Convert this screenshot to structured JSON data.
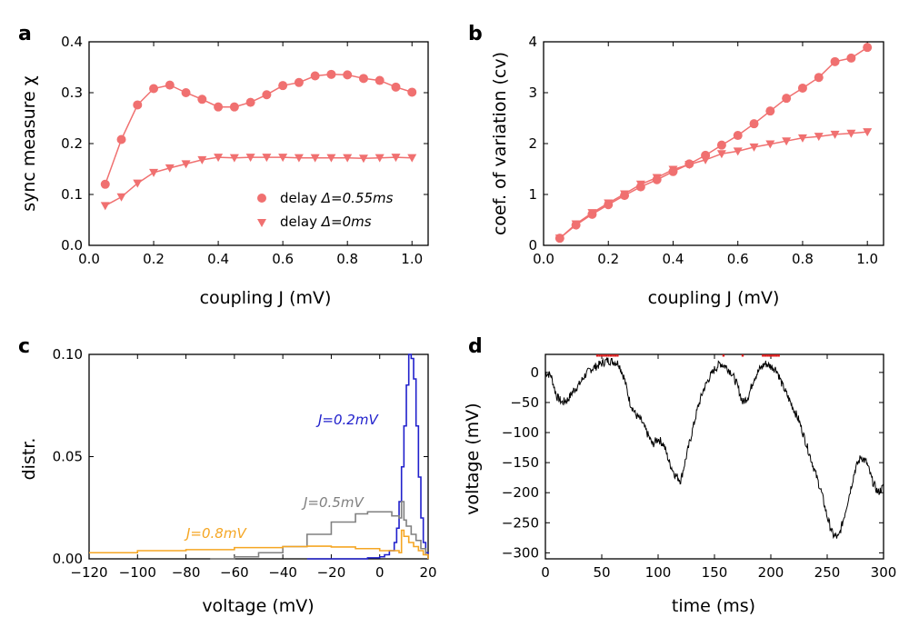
{
  "chart_data": [
    {
      "panel": "a",
      "type": "line",
      "xlabel": "coupling J (mV)",
      "ylabel": "sync measure χ",
      "xlim": [
        0,
        1.05
      ],
      "ylim": [
        0,
        0.4
      ],
      "xticks": [
        0.0,
        0.2,
        0.4,
        0.6,
        0.8,
        1.0
      ],
      "yticks": [
        0.0,
        0.1,
        0.2,
        0.3,
        0.4
      ],
      "grid": false,
      "legend_position": "lower-right",
      "series": [
        {
          "name": "delay Δ=0.55ms",
          "marker": "circle",
          "color": "#f07070",
          "x": [
            0.05,
            0.1,
            0.15,
            0.2,
            0.25,
            0.3,
            0.35,
            0.4,
            0.45,
            0.5,
            0.55,
            0.6,
            0.65,
            0.7,
            0.75,
            0.8,
            0.85,
            0.9,
            0.95,
            1.0
          ],
          "y": [
            0.12,
            0.208,
            0.276,
            0.308,
            0.315,
            0.3,
            0.287,
            0.272,
            0.272,
            0.281,
            0.296,
            0.314,
            0.32,
            0.333,
            0.336,
            0.335,
            0.328,
            0.324,
            0.311,
            0.301
          ]
        },
        {
          "name": "delay Δ=0ms",
          "marker": "triangle-down",
          "color": "#f07070",
          "x": [
            0.05,
            0.1,
            0.15,
            0.2,
            0.25,
            0.3,
            0.35,
            0.4,
            0.45,
            0.5,
            0.55,
            0.6,
            0.65,
            0.7,
            0.75,
            0.8,
            0.85,
            0.9,
            0.95,
            1.0
          ],
          "y": [
            0.078,
            0.095,
            0.122,
            0.143,
            0.152,
            0.16,
            0.168,
            0.173,
            0.172,
            0.173,
            0.173,
            0.173,
            0.172,
            0.172,
            0.172,
            0.172,
            0.171,
            0.172,
            0.173,
            0.172
          ]
        }
      ]
    },
    {
      "panel": "b",
      "type": "line",
      "xlabel": "coupling J (mV)",
      "ylabel": "coef. of variation (cv)",
      "xlim": [
        0,
        1.05
      ],
      "ylim": [
        0,
        4
      ],
      "xticks": [
        0.0,
        0.2,
        0.4,
        0.6,
        0.8,
        1.0
      ],
      "yticks": [
        0,
        1,
        2,
        3,
        4
      ],
      "grid": false,
      "series": [
        {
          "name": "",
          "marker": "circle",
          "color": "#f07070",
          "x": [
            0.05,
            0.1,
            0.15,
            0.2,
            0.25,
            0.3,
            0.35,
            0.4,
            0.45,
            0.5,
            0.55,
            0.6,
            0.65,
            0.7,
            0.75,
            0.8,
            0.85,
            0.9,
            0.95,
            1.0
          ],
          "y": [
            0.14,
            0.4,
            0.61,
            0.8,
            0.98,
            1.15,
            1.29,
            1.45,
            1.6,
            1.77,
            1.97,
            2.16,
            2.39,
            2.64,
            2.89,
            3.09,
            3.3,
            3.61,
            3.68,
            3.89
          ]
        },
        {
          "name": "",
          "marker": "triangle-down",
          "color": "#f07070",
          "x": [
            0.05,
            0.1,
            0.15,
            0.2,
            0.25,
            0.3,
            0.35,
            0.4,
            0.45,
            0.5,
            0.55,
            0.6,
            0.65,
            0.7,
            0.75,
            0.8,
            0.85,
            0.9,
            0.95,
            1.0
          ],
          "y": [
            0.14,
            0.42,
            0.64,
            0.83,
            1.01,
            1.2,
            1.33,
            1.49,
            1.59,
            1.68,
            1.8,
            1.85,
            1.93,
            1.99,
            2.05,
            2.11,
            2.14,
            2.18,
            2.2,
            2.23
          ]
        }
      ]
    },
    {
      "panel": "c",
      "type": "line",
      "xlabel": "voltage (mV)",
      "ylabel": "distr.",
      "xlim": [
        -120,
        20
      ],
      "ylim": [
        0,
        0.1
      ],
      "xticks": [
        -120,
        -100,
        -80,
        -60,
        -40,
        -20,
        0,
        20
      ],
      "yticks": [
        0.0,
        0.05,
        0.1
      ],
      "ytick_labels": [
        "0.00",
        "0.05",
        "0.10"
      ],
      "xtick_labels": [
        "−120",
        "−100",
        "−80",
        "−60",
        "−40",
        "−20",
        "0",
        "20"
      ],
      "grid": false,
      "series": [
        {
          "name": "J=0.2mV",
          "color": "#2020cc",
          "x": [
            -30,
            -20,
            -10,
            -5,
            0,
            2,
            4,
            6,
            7,
            8,
            9,
            10,
            11,
            12,
            13,
            14,
            15,
            16,
            17,
            18,
            19,
            20
          ],
          "y": [
            0.0,
            0.0,
            0.0,
            0.0005,
            0.001,
            0.002,
            0.004,
            0.008,
            0.015,
            0.028,
            0.045,
            0.065,
            0.085,
            0.1,
            0.098,
            0.088,
            0.065,
            0.04,
            0.02,
            0.008,
            0.003,
            0.0
          ]
        },
        {
          "name": "J=0.5mV",
          "color": "#808080",
          "x": [
            -70,
            -60,
            -50,
            -40,
            -30,
            -20,
            -10,
            -5,
            0,
            5,
            8,
            9,
            10,
            11,
            13,
            15,
            17,
            19,
            20
          ],
          "y": [
            0.0,
            0.001,
            0.003,
            0.006,
            0.012,
            0.018,
            0.022,
            0.023,
            0.023,
            0.021,
            0.02,
            0.028,
            0.019,
            0.016,
            0.012,
            0.009,
            0.005,
            0.002,
            0.0
          ]
        },
        {
          "name": "J=0.8mV",
          "color": "#f5a623",
          "x": [
            -120,
            -100,
            -80,
            -60,
            -40,
            -30,
            -20,
            -10,
            0,
            8,
            9,
            10,
            12,
            14,
            16,
            18,
            20
          ],
          "y": [
            0.003,
            0.004,
            0.0045,
            0.0055,
            0.006,
            0.0062,
            0.0058,
            0.005,
            0.004,
            0.003,
            0.014,
            0.011,
            0.008,
            0.006,
            0.004,
            0.002,
            0.0
          ]
        }
      ]
    },
    {
      "panel": "d",
      "type": "line",
      "xlabel": "time (ms)",
      "ylabel": "voltage (mV)",
      "xlim": [
        0,
        300
      ],
      "ylim": [
        -310,
        30
      ],
      "xticks": [
        0,
        50,
        100,
        150,
        200,
        250,
        300
      ],
      "yticks": [
        0,
        -50,
        -100,
        -150,
        -200,
        -250,
        -300
      ],
      "ytick_labels": [
        "0",
        "−50",
        "−100",
        "−150",
        "−200",
        "−250",
        "−300"
      ],
      "grid": false,
      "series": [
        {
          "name": "",
          "color": "#000000",
          "x": [
            0,
            5,
            10,
            15,
            20,
            25,
            30,
            35,
            40,
            45,
            50,
            55,
            60,
            65,
            70,
            75,
            80,
            85,
            90,
            95,
            100,
            105,
            110,
            115,
            120,
            125,
            130,
            135,
            140,
            145,
            150,
            155,
            160,
            165,
            170,
            175,
            180,
            185,
            190,
            195,
            200,
            205,
            210,
            215,
            220,
            225,
            230,
            235,
            240,
            245,
            250,
            255,
            260,
            265,
            270,
            275,
            280,
            285,
            290,
            295,
            300
          ],
          "y": [
            0,
            -5,
            -40,
            -50,
            -45,
            -30,
            -20,
            -5,
            5,
            10,
            15,
            20,
            18,
            15,
            -10,
            -50,
            -70,
            -80,
            -100,
            -120,
            -110,
            -120,
            -150,
            -170,
            -180,
            -140,
            -100,
            -60,
            -30,
            -10,
            5,
            15,
            10,
            0,
            -20,
            -50,
            -40,
            -10,
            5,
            15,
            10,
            5,
            -20,
            -40,
            -60,
            -80,
            -110,
            -140,
            -170,
            -200,
            -240,
            -270,
            -275,
            -240,
            -200,
            -160,
            -140,
            -150,
            -180,
            -200,
            -190
          ]
        }
      ],
      "spikes": {
        "color": "#e02020",
        "y": 28,
        "x": [
          46,
          48,
          50,
          52,
          54,
          56,
          58,
          60,
          62,
          64,
          158,
          175,
          193,
          195,
          197,
          199,
          201,
          203,
          205,
          207
        ]
      }
    }
  ],
  "panels": {
    "a": {
      "label": "a"
    },
    "b": {
      "label": "b"
    },
    "c": {
      "label": "c"
    },
    "d": {
      "label": "d"
    }
  },
  "legend_a": {
    "item1_prefix": "delay ",
    "item1_math": "Δ=0.55ms",
    "item2_prefix": "delay ",
    "item2_math": "Δ=0ms"
  },
  "annotations_c": {
    "j02": "J=0.2mV",
    "j05": "J=0.5mV",
    "j08": "J=0.8mV"
  },
  "colors": {
    "salmon": "#f07070",
    "blue": "#2020cc",
    "gray": "#808080",
    "orange": "#f5a623",
    "black": "#000000",
    "spike": "#e02020"
  }
}
